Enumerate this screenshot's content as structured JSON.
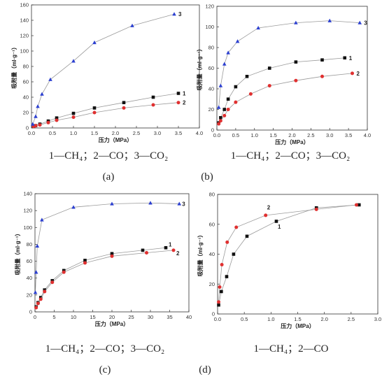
{
  "colors": {
    "ch4": "#111111",
    "co": "#e03030",
    "co2": "#2b3fd1",
    "line": "#9a9a9a",
    "axis": "#333333"
  },
  "chart_data": [
    {
      "type": "line",
      "panel_label": "(a)",
      "caption": "1—CH₄；2—CO；3—CO₂",
      "xlabel": "压力（MPa）",
      "ylabel": "吸附量（ml·g⁻¹）",
      "xlim": [
        0,
        4.0
      ],
      "ylim": [
        0,
        160
      ],
      "xticks": [
        "0.0",
        "0.5",
        "1.0",
        "1.5",
        "2.0",
        "2.5",
        "3.0",
        "3.5",
        "4.0"
      ],
      "yticks": [
        "0",
        "20",
        "40",
        "60",
        "80",
        "100",
        "120",
        "140",
        "160"
      ],
      "series": [
        {
          "name": "1",
          "marker": "square",
          "color": "#111111",
          "x": [
            0.05,
            0.1,
            0.2,
            0.4,
            0.6,
            1.0,
            1.5,
            2.2,
            2.9,
            3.5
          ],
          "y": [
            2,
            3,
            5,
            9,
            13,
            19,
            26,
            33,
            40,
            45
          ]
        },
        {
          "name": "2",
          "marker": "circle",
          "color": "#e03030",
          "x": [
            0.05,
            0.1,
            0.2,
            0.4,
            0.6,
            1.0,
            1.5,
            2.2,
            2.9,
            3.5
          ],
          "y": [
            2,
            3,
            4,
            7,
            10,
            14,
            20,
            26,
            30,
            33
          ]
        },
        {
          "name": "3",
          "marker": "triangle",
          "color": "#2b3fd1",
          "x": [
            0.03,
            0.1,
            0.15,
            0.25,
            0.45,
            1.0,
            1.5,
            2.4,
            3.4
          ],
          "y": [
            5,
            15,
            28,
            44,
            63,
            87,
            111,
            133,
            148
          ]
        }
      ]
    },
    {
      "type": "line",
      "panel_label": "(b)",
      "caption": "1—CH₄；2—CO；3—CO₂",
      "xlabel": "压力（MPa）",
      "ylabel": "吸附量（ml·g⁻¹）",
      "xlim": [
        0,
        4.0
      ],
      "ylim": [
        0,
        120
      ],
      "xticks": [
        "0.0",
        "0.5",
        "1.0",
        "1.5",
        "2.0",
        "2.5",
        "3.0",
        "3.5",
        "4.0"
      ],
      "yticks": [
        "0",
        "20",
        "40",
        "60",
        "80",
        "100",
        "120"
      ],
      "series": [
        {
          "name": "1",
          "marker": "square",
          "color": "#111111",
          "x": [
            0.05,
            0.1,
            0.2,
            0.3,
            0.5,
            0.8,
            1.4,
            2.1,
            2.8,
            3.4
          ],
          "y": [
            7,
            12,
            20,
            30,
            42,
            52,
            60,
            66,
            68,
            70
          ]
        },
        {
          "name": "2",
          "marker": "circle",
          "color": "#e03030",
          "x": [
            0.05,
            0.1,
            0.2,
            0.3,
            0.5,
            0.9,
            1.4,
            2.1,
            2.8,
            3.6
          ],
          "y": [
            6,
            9,
            14,
            20,
            27,
            35,
            43,
            48,
            52,
            55
          ]
        },
        {
          "name": "3",
          "marker": "triangle",
          "color": "#2b3fd1",
          "x": [
            0.05,
            0.1,
            0.2,
            0.3,
            0.55,
            1.1,
            2.1,
            3.0,
            3.8
          ],
          "y": [
            22,
            43,
            64,
            75,
            86,
            99,
            104,
            106,
            104
          ]
        }
      ]
    },
    {
      "type": "line",
      "panel_label": "(c)",
      "caption": "1—CH₄；2—CO；3—CO₂",
      "xlabel": "压力（MPa）",
      "ylabel": "吸附量（ml·g⁻¹）",
      "xlim": [
        0,
        40
      ],
      "ylim": [
        0,
        140
      ],
      "xticks": [
        "0",
        "5",
        "10",
        "15",
        "20",
        "25",
        "30",
        "35",
        "40"
      ],
      "yticks": [
        "0",
        "20",
        "40",
        "60",
        "80",
        "100",
        "120",
        "140"
      ],
      "series": [
        {
          "name": "1",
          "marker": "square",
          "color": "#111111",
          "x": [
            0.3,
            0.8,
            1.5,
            2.5,
            4.5,
            7.5,
            13,
            20,
            28,
            34
          ],
          "y": [
            6,
            11,
            17,
            26,
            37,
            49,
            61,
            69,
            73,
            76
          ]
        },
        {
          "name": "2",
          "marker": "circle",
          "color": "#e03030",
          "x": [
            0.3,
            0.8,
            1.5,
            2.5,
            4.5,
            7.5,
            13,
            20,
            29,
            36
          ],
          "y": [
            5,
            10,
            15,
            24,
            35,
            47,
            58,
            66,
            70,
            73
          ]
        },
        {
          "name": "3",
          "marker": "triangle",
          "color": "#2b3fd1",
          "x": [
            0.1,
            0.3,
            0.6,
            1.8,
            10,
            20,
            30,
            37.5
          ],
          "y": [
            23,
            47,
            78,
            109,
            124,
            128,
            129,
            128
          ]
        }
      ]
    },
    {
      "type": "line",
      "panel_label": "(d)",
      "caption": "1—CH₄；2—CO",
      "xlabel": "压力（MPa）",
      "ylabel": "吸附量（ml·g⁻¹）",
      "xlim": [
        0,
        3.0
      ],
      "ylim": [
        0,
        80
      ],
      "xticks": [
        "0.0",
        "0.5",
        "1.0",
        "1.5",
        "2.0",
        "2.5",
        "3.0"
      ],
      "yticks": [
        "0",
        "20",
        "40",
        "60",
        "80"
      ],
      "series": [
        {
          "name": "1",
          "marker": "square",
          "color": "#111111",
          "x": [
            0.02,
            0.07,
            0.17,
            0.3,
            0.55,
            1.1,
            1.85,
            2.65
          ],
          "y": [
            6,
            15,
            25,
            40,
            52,
            62,
            71,
            73
          ]
        },
        {
          "name": "2",
          "marker": "circle",
          "color": "#e03030",
          "x": [
            0.02,
            0.04,
            0.08,
            0.18,
            0.35,
            0.9,
            1.85,
            2.6
          ],
          "y": [
            8,
            18,
            33,
            48,
            58,
            66,
            70,
            73
          ]
        }
      ]
    }
  ]
}
